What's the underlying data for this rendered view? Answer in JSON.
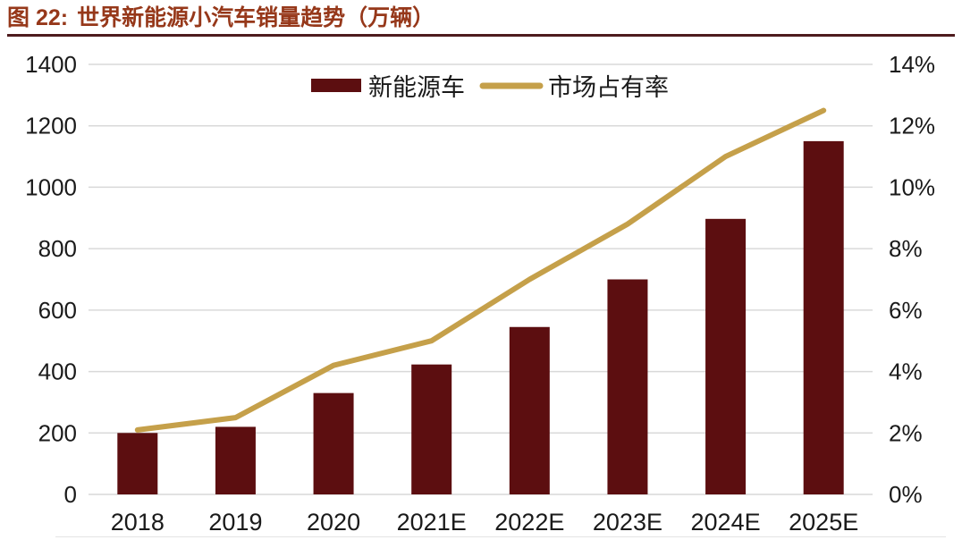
{
  "header": {
    "figure_label": "图 22:",
    "title": "世界新能源小汽车销量趋势（万辆）"
  },
  "chart_data": {
    "type": "bar",
    "subtype": "bar+line dual axis",
    "title": "世界新能源小汽车销量趋势（万辆）",
    "categories": [
      "2018",
      "2019",
      "2020",
      "2021E",
      "2022E",
      "2023E",
      "2024E",
      "2025E"
    ],
    "series": [
      {
        "name": "新能源车",
        "type": "bar",
        "axis": "left",
        "unit": "万辆",
        "values": [
          200,
          220,
          330,
          423,
          545,
          700,
          897,
          1150
        ]
      },
      {
        "name": "市场占有率",
        "type": "line",
        "axis": "right",
        "unit": "%",
        "values": [
          2.1,
          2.5,
          4.2,
          5.0,
          7.0,
          8.8,
          11.0,
          12.5
        ]
      }
    ],
    "left_axis": {
      "min": 0,
      "max": 1400,
      "step": 200,
      "labels": [
        "0",
        "200",
        "400",
        "600",
        "800",
        "1000",
        "1200",
        "1400"
      ]
    },
    "right_axis": {
      "min": 0,
      "max": 14,
      "step": 2,
      "labels": [
        "0%",
        "2%",
        "4%",
        "6%",
        "8%",
        "10%",
        "12%",
        "14%"
      ]
    },
    "legend": {
      "position": "top-center",
      "entries": [
        "新能源车",
        "市场占有率"
      ]
    },
    "grid": "horizontal",
    "colors": {
      "bar": "#5C0E10",
      "line": "#C5A04A",
      "grid": "#D9D9D9",
      "axis_text": "#1a1a1a",
      "title_text": "#96381A",
      "title_rule": "#4E1B1E"
    }
  }
}
